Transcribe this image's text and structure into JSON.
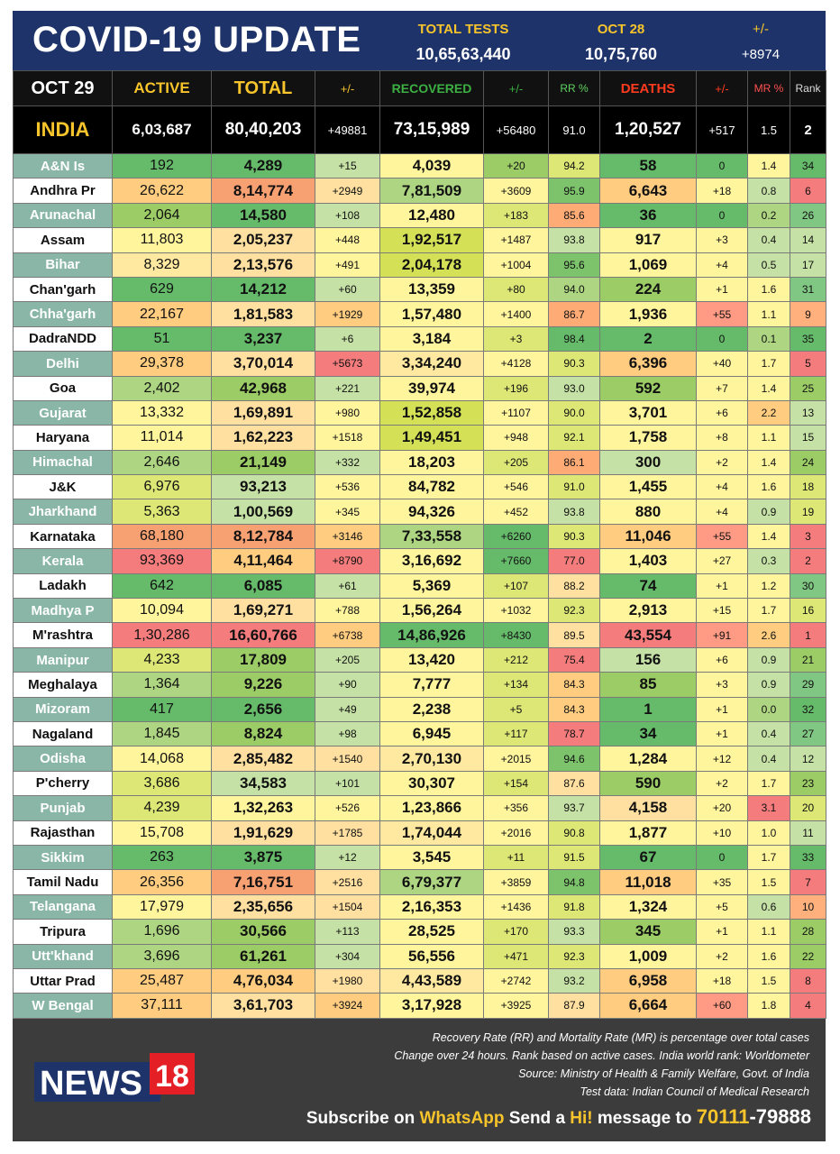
{
  "header": {
    "title": "COVID-19 UPDATE",
    "total_tests_label": "TOTAL TESTS",
    "total_tests_value": "10,65,63,440",
    "date_tests_label": "OCT 28",
    "date_tests_value": "10,75,760",
    "change_label": "+/-",
    "change_value": "+8974"
  },
  "columns": {
    "date": "OCT 29",
    "active": "ACTIVE",
    "total": "TOTAL",
    "total_change": "+/-",
    "recovered": "RECOVERED",
    "recovered_change": "+/-",
    "rr": "RR %",
    "deaths": "DEATHS",
    "deaths_change": "+/-",
    "mr": "MR %",
    "rank": "Rank"
  },
  "colors": {
    "header_bg": "#1e3369",
    "accent_yellow": "#f7c52b",
    "green": "#5cb85c",
    "recovered_header": "#3cb043",
    "deaths_header": "#ff3b1f",
    "rr_header": "#5fd35f",
    "mr_header": "#ff5050"
  },
  "india": [
    "INDIA",
    "6,03,687",
    "80,40,203",
    "+49881",
    "73,15,989",
    "+56480",
    "91.0",
    "1,20,527",
    "+517",
    "1.5",
    "2"
  ],
  "states": [
    [
      "A&N Is",
      "192",
      "4,289",
      "+15",
      "4,039",
      "+20",
      "94.2",
      "58",
      "0",
      "1.4",
      "34"
    ],
    [
      "Andhra Pr",
      "26,622",
      "8,14,774",
      "+2949",
      "7,81,509",
      "+3609",
      "95.9",
      "6,643",
      "+18",
      "0.8",
      "6"
    ],
    [
      "Arunachal",
      "2,064",
      "14,580",
      "+108",
      "12,480",
      "+183",
      "85.6",
      "36",
      "0",
      "0.2",
      "26"
    ],
    [
      "Assam",
      "11,803",
      "2,05,237",
      "+448",
      "1,92,517",
      "+1487",
      "93.8",
      "917",
      "+3",
      "0.4",
      "14"
    ],
    [
      "Bihar",
      "8,329",
      "2,13,576",
      "+491",
      "2,04,178",
      "+1004",
      "95.6",
      "1,069",
      "+4",
      "0.5",
      "17"
    ],
    [
      "Chan'garh",
      "629",
      "14,212",
      "+60",
      "13,359",
      "+80",
      "94.0",
      "224",
      "+1",
      "1.6",
      "31"
    ],
    [
      "Chha'garh",
      "22,167",
      "1,81,583",
      "+1929",
      "1,57,480",
      "+1400",
      "86.7",
      "1,936",
      "+55",
      "1.1",
      "9"
    ],
    [
      "DadraNDD",
      "51",
      "3,237",
      "+6",
      "3,184",
      "+3",
      "98.4",
      "2",
      "0",
      "0.1",
      "35"
    ],
    [
      "Delhi",
      "29,378",
      "3,70,014",
      "+5673",
      "3,34,240",
      "+4128",
      "90.3",
      "6,396",
      "+40",
      "1.7",
      "5"
    ],
    [
      "Goa",
      "2,402",
      "42,968",
      "+221",
      "39,974",
      "+196",
      "93.0",
      "592",
      "+7",
      "1.4",
      "25"
    ],
    [
      "Gujarat",
      "13,332",
      "1,69,891",
      "+980",
      "1,52,858",
      "+1107",
      "90.0",
      "3,701",
      "+6",
      "2.2",
      "13"
    ],
    [
      "Haryana",
      "11,014",
      "1,62,223",
      "+1518",
      "1,49,451",
      "+948",
      "92.1",
      "1,758",
      "+8",
      "1.1",
      "15"
    ],
    [
      "Himachal",
      "2,646",
      "21,149",
      "+332",
      "18,203",
      "+205",
      "86.1",
      "300",
      "+2",
      "1.4",
      "24"
    ],
    [
      "J&K",
      "6,976",
      "93,213",
      "+536",
      "84,782",
      "+546",
      "91.0",
      "1,455",
      "+4",
      "1.6",
      "18"
    ],
    [
      "Jharkhand",
      "5,363",
      "1,00,569",
      "+345",
      "94,326",
      "+452",
      "93.8",
      "880",
      "+4",
      "0.9",
      "19"
    ],
    [
      "Karnataka",
      "68,180",
      "8,12,784",
      "+3146",
      "7,33,558",
      "+6260",
      "90.3",
      "11,046",
      "+55",
      "1.4",
      "3"
    ],
    [
      "Kerala",
      "93,369",
      "4,11,464",
      "+8790",
      "3,16,692",
      "+7660",
      "77.0",
      "1,403",
      "+27",
      "0.3",
      "2"
    ],
    [
      "Ladakh",
      "642",
      "6,085",
      "+61",
      "5,369",
      "+107",
      "88.2",
      "74",
      "+1",
      "1.2",
      "30"
    ],
    [
      "Madhya P",
      "10,094",
      "1,69,271",
      "+788",
      "1,56,264",
      "+1032",
      "92.3",
      "2,913",
      "+15",
      "1.7",
      "16"
    ],
    [
      "M'rashtra",
      "1,30,286",
      "16,60,766",
      "+6738",
      "14,86,926",
      "+8430",
      "89.5",
      "43,554",
      "+91",
      "2.6",
      "1"
    ],
    [
      "Manipur",
      "4,233",
      "17,809",
      "+205",
      "13,420",
      "+212",
      "75.4",
      "156",
      "+6",
      "0.9",
      "21"
    ],
    [
      "Meghalaya",
      "1,364",
      "9,226",
      "+90",
      "7,777",
      "+134",
      "84.3",
      "85",
      "+3",
      "0.9",
      "29"
    ],
    [
      "Mizoram",
      "417",
      "2,656",
      "+49",
      "2,238",
      "+5",
      "84.3",
      "1",
      "+1",
      "0.0",
      "32"
    ],
    [
      "Nagaland",
      "1,845",
      "8,824",
      "+98",
      "6,945",
      "+117",
      "78.7",
      "34",
      "+1",
      "0.4",
      "27"
    ],
    [
      "Odisha",
      "14,068",
      "2,85,482",
      "+1540",
      "2,70,130",
      "+2015",
      "94.6",
      "1,284",
      "+12",
      "0.4",
      "12"
    ],
    [
      "P'cherry",
      "3,686",
      "34,583",
      "+101",
      "30,307",
      "+154",
      "87.6",
      "590",
      "+2",
      "1.7",
      "23"
    ],
    [
      "Punjab",
      "4,239",
      "1,32,263",
      "+526",
      "1,23,866",
      "+356",
      "93.7",
      "4,158",
      "+20",
      "3.1",
      "20"
    ],
    [
      "Rajasthan",
      "15,708",
      "1,91,629",
      "+1785",
      "1,74,044",
      "+2016",
      "90.8",
      "1,877",
      "+10",
      "1.0",
      "11"
    ],
    [
      "Sikkim",
      "263",
      "3,875",
      "+12",
      "3,545",
      "+11",
      "91.5",
      "67",
      "0",
      "1.7",
      "33"
    ],
    [
      "Tamil Nadu",
      "26,356",
      "7,16,751",
      "+2516",
      "6,79,377",
      "+3859",
      "94.8",
      "11,018",
      "+35",
      "1.5",
      "7"
    ],
    [
      "Telangana",
      "17,979",
      "2,35,656",
      "+1504",
      "2,16,353",
      "+1436",
      "91.8",
      "1,324",
      "+5",
      "0.6",
      "10"
    ],
    [
      "Tripura",
      "1,696",
      "30,566",
      "+113",
      "28,525",
      "+170",
      "93.3",
      "345",
      "+1",
      "1.1",
      "28"
    ],
    [
      "Utt'khand",
      "3,696",
      "61,261",
      "+304",
      "56,556",
      "+471",
      "92.3",
      "1,009",
      "+2",
      "1.6",
      "22"
    ],
    [
      "Uttar Prad",
      "25,487",
      "4,76,034",
      "+1980",
      "4,43,589",
      "+2742",
      "93.2",
      "6,958",
      "+18",
      "1.5",
      "8"
    ],
    [
      "W Bengal",
      "37,111",
      "3,61,703",
      "+3924",
      "3,17,928",
      "+3925",
      "87.9",
      "6,664",
      "+60",
      "1.8",
      "4"
    ]
  ],
  "cell_colors": [
    [
      "#8ab6a8",
      "#66bb6a",
      "#66bb6a",
      "#c5e1a5",
      "#fff59d",
      "#9ccc65",
      "#dce775",
      "#66bb6a",
      "#66bb6a",
      "#fff59d",
      "#66bb6a"
    ],
    [
      "#ffffff",
      "#ffcc80",
      "#f7a072",
      "#ffe0a0",
      "#aed581",
      "#fff59d",
      "#7cc36c",
      "#ffcc80",
      "#fff59d",
      "#c5e1a5",
      "#f47c7c"
    ],
    [
      "#8ab6a8",
      "#9ccc65",
      "#66bb6a",
      "#c5e1a5",
      "#fff59d",
      "#dce775",
      "#ffab76",
      "#66bb6a",
      "#66bb6a",
      "#aed581",
      "#81c784"
    ],
    [
      "#ffffff",
      "#fff59d",
      "#ffe0a0",
      "#fff59d",
      "#d4e157",
      "#fff59d",
      "#c5e1a5",
      "#fff59d",
      "#fff59d",
      "#c5e1a5",
      "#c5e1a5"
    ],
    [
      "#8ab6a8",
      "#ffe9a0",
      "#ffe0a0",
      "#fff59d",
      "#d4e157",
      "#fff59d",
      "#7cc36c",
      "#fff59d",
      "#fff59d",
      "#c5e1a5",
      "#c5e1a5"
    ],
    [
      "#ffffff",
      "#66bb6a",
      "#66bb6a",
      "#c5e1a5",
      "#fff59d",
      "#dce775",
      "#aed581",
      "#9ccc65",
      "#fff59d",
      "#fff59d",
      "#81c784"
    ],
    [
      "#8ab6a8",
      "#ffcc80",
      "#ffe0a0",
      "#ffcc80",
      "#fff59d",
      "#fff59d",
      "#ffab76",
      "#fff59d",
      "#ff9b85",
      "#fff59d",
      "#ffb07c"
    ],
    [
      "#ffffff",
      "#66bb6a",
      "#66bb6a",
      "#c5e1a5",
      "#fff59d",
      "#dce775",
      "#66bb6a",
      "#66bb6a",
      "#66bb6a",
      "#aed581",
      "#66bb6a"
    ],
    [
      "#8ab6a8",
      "#ffcc80",
      "#ffe0a0",
      "#f47c7c",
      "#ffe9a0",
      "#fff59d",
      "#dce775",
      "#ffcc80",
      "#fff59d",
      "#fff59d",
      "#f47c7c"
    ],
    [
      "#ffffff",
      "#aed581",
      "#9ccc65",
      "#c5e1a5",
      "#fff59d",
      "#dce775",
      "#c5e1a5",
      "#9ccc65",
      "#fff59d",
      "#fff59d",
      "#9ccc65"
    ],
    [
      "#8ab6a8",
      "#fff59d",
      "#ffe0a0",
      "#fff59d",
      "#d4e157",
      "#fff59d",
      "#dce775",
      "#fff59d",
      "#fff59d",
      "#ffcc80",
      "#c5e1a5"
    ],
    [
      "#ffffff",
      "#fff59d",
      "#ffe0a0",
      "#fff59d",
      "#d4e157",
      "#fff59d",
      "#dce775",
      "#fff59d",
      "#fff59d",
      "#fff59d",
      "#c5e1a5"
    ],
    [
      "#8ab6a8",
      "#aed581",
      "#9ccc65",
      "#c5e1a5",
      "#fff59d",
      "#dce775",
      "#ffab76",
      "#c5e1a5",
      "#fff59d",
      "#fff59d",
      "#9ccc65"
    ],
    [
      "#ffffff",
      "#dce775",
      "#c5e1a5",
      "#fff59d",
      "#fff59d",
      "#fff59d",
      "#dce775",
      "#fff59d",
      "#fff59d",
      "#fff59d",
      "#dce775"
    ],
    [
      "#8ab6a8",
      "#dce775",
      "#c5e1a5",
      "#fff59d",
      "#fff59d",
      "#fff59d",
      "#c5e1a5",
      "#fff59d",
      "#fff59d",
      "#c5e1a5",
      "#dce775"
    ],
    [
      "#ffffff",
      "#f7a072",
      "#f7a072",
      "#ffcc80",
      "#aed581",
      "#66bb6a",
      "#dce775",
      "#ffcc80",
      "#ff9b85",
      "#fff59d",
      "#f47c7c"
    ],
    [
      "#8ab6a8",
      "#f47c7c",
      "#ffcc80",
      "#f47c7c",
      "#fff59d",
      "#66bb6a",
      "#f47c7c",
      "#fff59d",
      "#fff59d",
      "#c5e1a5",
      "#f47c7c"
    ],
    [
      "#ffffff",
      "#66bb6a",
      "#66bb6a",
      "#c5e1a5",
      "#fff59d",
      "#dce775",
      "#ffe0a0",
      "#66bb6a",
      "#fff59d",
      "#fff59d",
      "#81c784"
    ],
    [
      "#8ab6a8",
      "#fff59d",
      "#ffe0a0",
      "#fff59d",
      "#fff59d",
      "#fff59d",
      "#dce775",
      "#fff59d",
      "#fff59d",
      "#fff59d",
      "#dce775"
    ],
    [
      "#ffffff",
      "#f47c7c",
      "#f47c7c",
      "#ffcc80",
      "#66bb6a",
      "#66bb6a",
      "#ffe0a0",
      "#f47c7c",
      "#ff9b85",
      "#ffcc80",
      "#f47c7c"
    ],
    [
      "#8ab6a8",
      "#dce775",
      "#9ccc65",
      "#c5e1a5",
      "#fff59d",
      "#dce775",
      "#f47c7c",
      "#c5e1a5",
      "#fff59d",
      "#c5e1a5",
      "#9ccc65"
    ],
    [
      "#ffffff",
      "#aed581",
      "#9ccc65",
      "#c5e1a5",
      "#fff59d",
      "#dce775",
      "#ffcc80",
      "#9ccc65",
      "#fff59d",
      "#c5e1a5",
      "#81c784"
    ],
    [
      "#8ab6a8",
      "#66bb6a",
      "#66bb6a",
      "#c5e1a5",
      "#fff59d",
      "#dce775",
      "#ffcc80",
      "#66bb6a",
      "#fff59d",
      "#aed581",
      "#66bb6a"
    ],
    [
      "#ffffff",
      "#aed581",
      "#9ccc65",
      "#c5e1a5",
      "#fff59d",
      "#dce775",
      "#f47c7c",
      "#66bb6a",
      "#fff59d",
      "#c5e1a5",
      "#81c784"
    ],
    [
      "#8ab6a8",
      "#fff59d",
      "#ffe0a0",
      "#ffe0a0",
      "#ffe9a0",
      "#fff59d",
      "#7cc36c",
      "#fff59d",
      "#fff59d",
      "#c5e1a5",
      "#c5e1a5"
    ],
    [
      "#ffffff",
      "#dce775",
      "#c5e1a5",
      "#c5e1a5",
      "#fff59d",
      "#dce775",
      "#ffe0a0",
      "#9ccc65",
      "#fff59d",
      "#fff59d",
      "#9ccc65"
    ],
    [
      "#8ab6a8",
      "#dce775",
      "#fff59d",
      "#fff59d",
      "#fff59d",
      "#fff59d",
      "#c5e1a5",
      "#ffe0a0",
      "#fff59d",
      "#f47c7c",
      "#dce775"
    ],
    [
      "#ffffff",
      "#fff59d",
      "#ffe0a0",
      "#ffe0a0",
      "#ffe9a0",
      "#fff59d",
      "#dce775",
      "#fff59d",
      "#fff59d",
      "#fff59d",
      "#c5e1a5"
    ],
    [
      "#8ab6a8",
      "#66bb6a",
      "#66bb6a",
      "#c5e1a5",
      "#fff59d",
      "#dce775",
      "#dce775",
      "#66bb6a",
      "#66bb6a",
      "#fff59d",
      "#66bb6a"
    ],
    [
      "#ffffff",
      "#ffcc80",
      "#f7a072",
      "#ffe0a0",
      "#aed581",
      "#fff59d",
      "#7cc36c",
      "#ffcc80",
      "#fff59d",
      "#fff59d",
      "#f47c7c"
    ],
    [
      "#8ab6a8",
      "#fff59d",
      "#ffe0a0",
      "#ffe0a0",
      "#fff59d",
      "#fff59d",
      "#dce775",
      "#fff59d",
      "#fff59d",
      "#c5e1a5",
      "#ffb07c"
    ],
    [
      "#ffffff",
      "#aed581",
      "#9ccc65",
      "#c5e1a5",
      "#fff59d",
      "#dce775",
      "#c5e1a5",
      "#9ccc65",
      "#fff59d",
      "#fff59d",
      "#9ccc65"
    ],
    [
      "#8ab6a8",
      "#aed581",
      "#9ccc65",
      "#c5e1a5",
      "#fff59d",
      "#dce775",
      "#dce775",
      "#fff59d",
      "#fff59d",
      "#fff59d",
      "#9ccc65"
    ],
    [
      "#ffffff",
      "#ffcc80",
      "#ffcc80",
      "#ffe0a0",
      "#ffe9a0",
      "#fff59d",
      "#c5e1a5",
      "#ffcc80",
      "#fff59d",
      "#fff59d",
      "#f47c7c"
    ],
    [
      "#8ab6a8",
      "#ffcc80",
      "#ffe0a0",
      "#ffcc80",
      "#fff59d",
      "#fff59d",
      "#ffe0a0",
      "#ffcc80",
      "#ff9b85",
      "#fff59d",
      "#f47c7c"
    ]
  ],
  "footer": {
    "logo_text": "NEWS",
    "logo_number": "18",
    "note1": "Recovery Rate (RR) and Mortality Rate (MR) is percentage over total cases",
    "note2": "Change over 24 hours. Rank based on active cases. India world rank: Worldometer",
    "note3": "Source: Ministry of Health & Family Welfare, Govt. of India",
    "note4": "Test data: Indian Council of Medical Research",
    "subscribe_pre": "Subscribe on ",
    "subscribe_app": "WhatsApp",
    "subscribe_mid": " Send a ",
    "subscribe_hi": "Hi!",
    "subscribe_post": " message to ",
    "phone_a": "70111",
    "phone_b": "-79888"
  }
}
